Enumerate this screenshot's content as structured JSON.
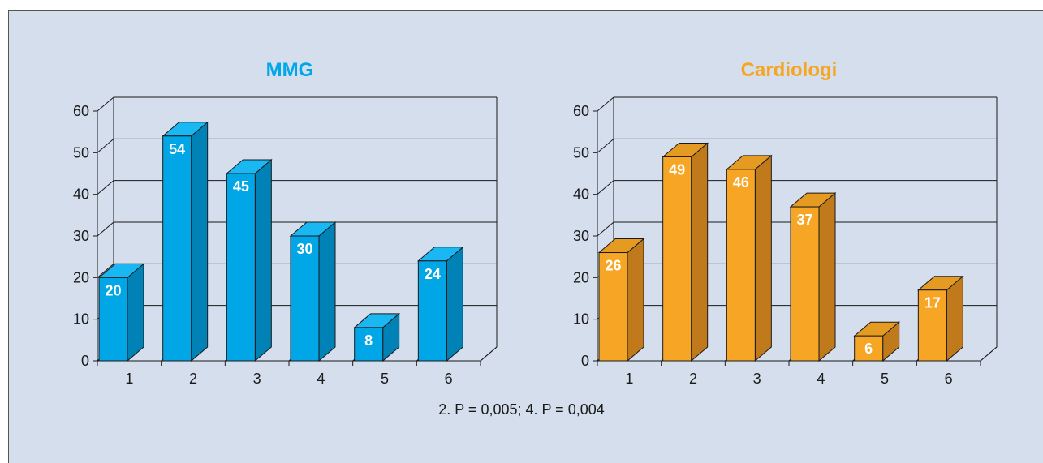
{
  "chart_data": [
    {
      "type": "bar",
      "title": "MMG",
      "categories": [
        "1",
        "2",
        "3",
        "4",
        "5",
        "6"
      ],
      "values": [
        20,
        54,
        45,
        30,
        8,
        24
      ],
      "ylim": [
        0,
        60
      ],
      "yticks": [
        "0",
        "10",
        "20",
        "30",
        "40",
        "50",
        "60"
      ],
      "grid": true,
      "style": "3d",
      "colors": {
        "title": "#00a8e8",
        "front": "#00a6e6",
        "side": "#0082b6",
        "top": "#1ab8f2"
      }
    },
    {
      "type": "bar",
      "title": "Cardiologi",
      "categories": [
        "1",
        "2",
        "3",
        "4",
        "5",
        "6"
      ],
      "values": [
        26,
        49,
        46,
        37,
        6,
        17
      ],
      "ylim": [
        0,
        60
      ],
      "yticks": [
        "0",
        "10",
        "20",
        "30",
        "40",
        "50",
        "60"
      ],
      "grid": true,
      "style": "3d",
      "colors": {
        "title": "#f7a51f",
        "front": "#f6a624",
        "side": "#c07a1b",
        "top": "#e59a22"
      }
    }
  ],
  "footnote": "2. P = 0,005; 4. P = 0,004",
  "colors": {
    "background": "#d4deed",
    "axis": "#1a1a1a"
  }
}
